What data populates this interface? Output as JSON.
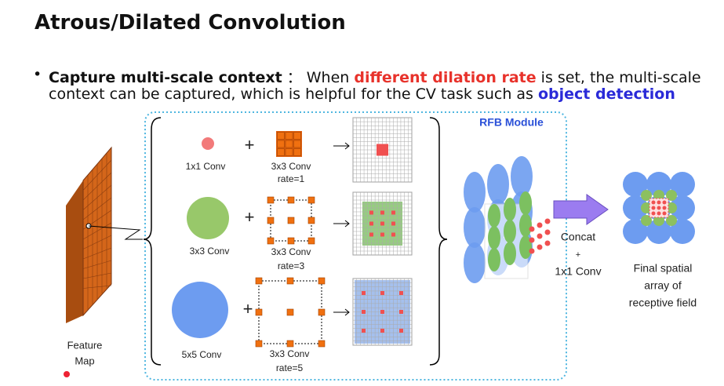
{
  "title": "Atrous/Dilated Convolution",
  "bullet": {
    "lead": "Capture multi-scale context",
    "separator": "：",
    "text_1": "When ",
    "highlight_1": "different dilation rate",
    "text_2": " is set, the multi-scale",
    "text_3": "context can be captured, which is helpful for the CV task such as ",
    "highlight_2": "object detection"
  },
  "diagram": {
    "module_label": "RFB Module",
    "feature_map": [
      "Feature",
      "Map"
    ],
    "plus": "+",
    "rows": [
      {
        "kernel": "1x1 Conv",
        "dilated": "3x3 Conv",
        "rate": "rate=1"
      },
      {
        "kernel": "3x3 Conv",
        "dilated": "3x3 Conv",
        "rate": "rate=3"
      },
      {
        "kernel": "5x5 Conv",
        "dilated": "3x3 Conv",
        "rate": "rate=5"
      }
    ],
    "concat": [
      "Concat",
      "+",
      "1x1 Conv"
    ],
    "output": [
      "Final spatial",
      "array of",
      "receptive field"
    ]
  }
}
